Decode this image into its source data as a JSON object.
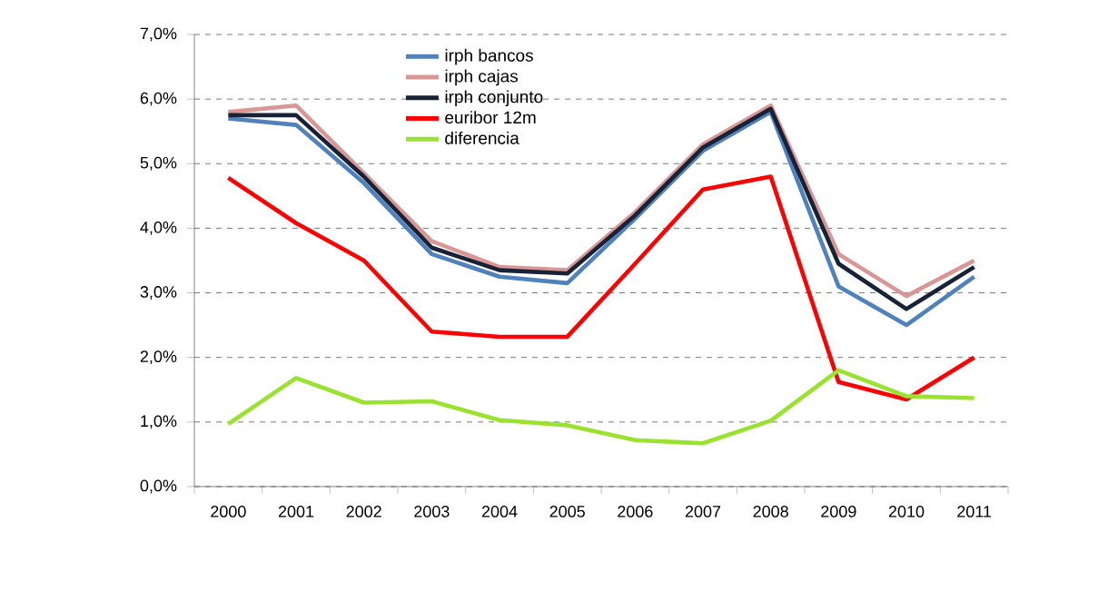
{
  "chart_data": {
    "type": "line",
    "categories": [
      "2000",
      "2001",
      "2002",
      "2003",
      "2004",
      "2005",
      "2006",
      "2007",
      "2008",
      "2009",
      "2010",
      "2011"
    ],
    "series": [
      {
        "name": "irph bancos",
        "color": "#4f81bd",
        "values": [
          5.7,
          5.6,
          4.7,
          3.6,
          3.25,
          3.15,
          4.15,
          5.2,
          5.8,
          3.1,
          2.5,
          3.25
        ]
      },
      {
        "name": "irph cajas",
        "color": "#d99694",
        "values": [
          5.8,
          5.9,
          4.85,
          3.8,
          3.4,
          3.35,
          4.25,
          5.3,
          5.9,
          3.6,
          2.95,
          3.5
        ]
      },
      {
        "name": "irph conjunto",
        "color": "#172236",
        "values": [
          5.75,
          5.75,
          4.8,
          3.7,
          3.35,
          3.3,
          4.2,
          5.25,
          5.85,
          3.45,
          2.75,
          3.4
        ]
      },
      {
        "name": "euribor 12m",
        "color": "#ff0000",
        "values": [
          4.78,
          4.08,
          3.5,
          2.4,
          2.32,
          2.32,
          3.45,
          4.6,
          4.8,
          1.62,
          1.35,
          2.0
        ]
      },
      {
        "name": "diferencia",
        "color": "#99e22e",
        "values": [
          0.97,
          1.68,
          1.3,
          1.32,
          1.03,
          0.95,
          0.72,
          0.67,
          1.02,
          1.8,
          1.4,
          1.37
        ]
      }
    ],
    "ylim": [
      0,
      7
    ],
    "yticks": [
      {
        "value": 0,
        "label": "0,0%"
      },
      {
        "value": 1,
        "label": "1,0%"
      },
      {
        "value": 2,
        "label": "2,0%"
      },
      {
        "value": 3,
        "label": "3,0%"
      },
      {
        "value": 4,
        "label": "4,0%"
      },
      {
        "value": 5,
        "label": "5,0%"
      },
      {
        "value": 6,
        "label": "6,0%"
      },
      {
        "value": 7,
        "label": "7,0%"
      }
    ],
    "grid": "y",
    "legend": "top",
    "marker": "none",
    "line_style": "solid"
  }
}
